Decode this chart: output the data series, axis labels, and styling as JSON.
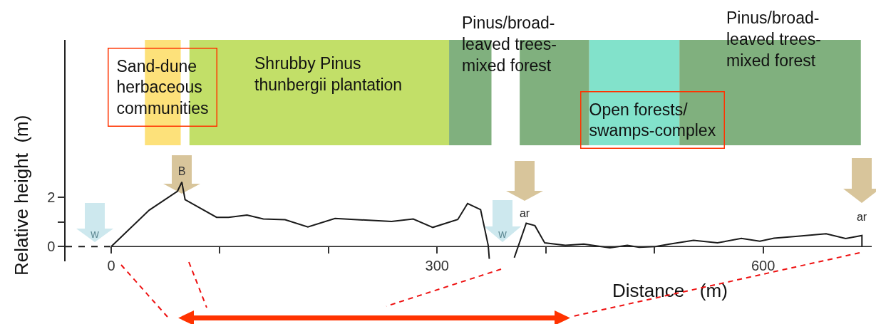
{
  "chart_data": {
    "type": "line",
    "xlabel": "Distance   (m)",
    "ylabel": "Relative height  (m)",
    "series": [
      {
        "color": "#1a1a1a",
        "x": [
          0,
          35,
          61,
          65,
          68,
          97,
          108,
          125,
          140,
          160,
          181,
          206,
          258,
          278,
          296,
          319,
          328,
          340,
          347,
          348,
          360,
          371,
          382,
          390,
          399,
          418,
          435,
          459,
          475,
          486,
          501,
          514,
          536,
          558,
          580,
          597,
          610,
          632,
          658,
          676,
          691,
          691
        ],
        "values": [
          0,
          1.48,
          2.25,
          2.62,
          1.91,
          1.19,
          1.19,
          1.28,
          1.12,
          1.09,
          0.8,
          1.14,
          1.02,
          1.12,
          0.78,
          1.1,
          1.75,
          1.5,
          0.05,
          -0.5,
          null,
          -0.45,
          0.95,
          0.85,
          0.15,
          0.05,
          0.1,
          -0.05,
          0.05,
          -0.03,
          0,
          0.1,
          0.25,
          0.15,
          0.33,
          0.22,
          0.34,
          0.42,
          0.52,
          0.33,
          0.45,
          0
        ]
      },
      {
        "color": "#1a1a1a",
        "x": [
          -42,
          0
        ],
        "values": [
          0,
          0
        ],
        "line_style": "dashed"
      }
    ],
    "xlim": [
      -42,
      700
    ],
    "ylim": [
      -0.6,
      8.4
    ],
    "xticks": [
      0,
      {
        "value": 100,
        "label": null
      },
      {
        "value": 200,
        "label": null
      },
      300,
      {
        "value": 400,
        "label": null
      },
      {
        "value": 500,
        "label": null
      },
      600
    ],
    "yticks": [
      0,
      {
        "value": 1,
        "label": null
      },
      2
    ],
    "bands": [
      {
        "axis": "x",
        "from": 31,
        "to": 64,
        "label": "Sand-dune\nherbaceous\ncommunities",
        "color": "#fde17a"
      },
      {
        "axis": "x",
        "from": 72,
        "to": 311,
        "label": "Shrubby Pinus\nthunbergii plantation",
        "color": "#c2df68"
      },
      {
        "axis": "x",
        "from": 311,
        "to": 350,
        "label": "Pinus/broad-\nleaved trees-\nmixed forest",
        "color": "#80b07e"
      },
      {
        "axis": "x",
        "from": 376,
        "to": 440,
        "color": "#80b07e"
      },
      {
        "axis": "x",
        "from": 440,
        "to": 523,
        "label": "Open forests/\nswamps-complex",
        "color": "#82e2cb"
      },
      {
        "axis": "x",
        "from": 523,
        "to": 690,
        "label": "Pinus/broad-\nleaved trees-\nmixed forest",
        "color": "#80b07e"
      }
    ],
    "annotations": [
      "w",
      "B",
      "w",
      "ar",
      "ar"
    ],
    "grid": false
  }
}
